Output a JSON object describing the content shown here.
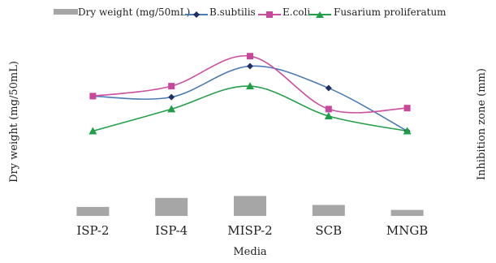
{
  "chart_data": {
    "type": "bar",
    "categories": [
      "ISP-2",
      "ISP-4",
      "MISP-2",
      "SCB",
      "MNGB"
    ],
    "xlabel": "Media",
    "ylabel_left": "Dry weight (mg/50mL)",
    "ylabel_right": "Inhibition zone (mm)",
    "left_axis_tick_labels_shown": false,
    "right_axis_tick_labels_shown": false,
    "series": [
      {
        "name": "Dry weight (mg/50mL)",
        "kind": "bar",
        "color": "#a6a6a6",
        "marker": "none",
        "values": [
          0.9,
          1.8,
          2.0,
          1.1,
          0.6
        ]
      },
      {
        "name": "B.subtilis",
        "kind": "line",
        "color": "#4a7ab5",
        "marker": "diamond",
        "marker_color": "#1f2f66",
        "values": [
          12.0,
          11.9,
          15.0,
          12.8,
          8.5
        ]
      },
      {
        "name": "E.coli",
        "kind": "line",
        "color": "#cc4fa0",
        "marker": "square",
        "marker_color": "#c7479a",
        "values": [
          12.0,
          13.0,
          16.0,
          10.7,
          10.8
        ]
      },
      {
        "name": "Fusarium proliferatum",
        "kind": "line",
        "color": "#25a04a",
        "marker": "triangle",
        "marker_color": "#1f9e48",
        "values": [
          8.5,
          10.7,
          13.0,
          10.0,
          8.5
        ]
      }
    ],
    "bar_ylim": [
      0,
      20
    ],
    "line_ylim": [
      0,
      20
    ],
    "legend_position": "top"
  }
}
